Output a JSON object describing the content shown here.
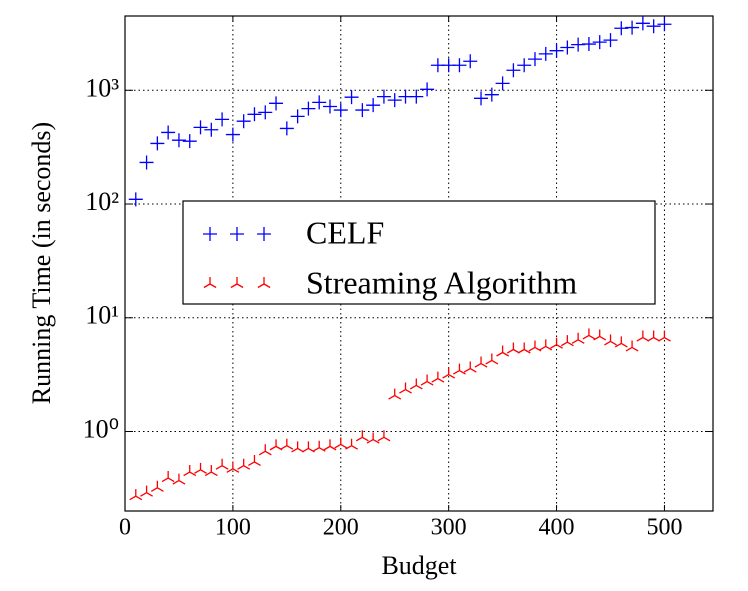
{
  "chart_data": {
    "type": "scatter",
    "xlabel": "Budget",
    "ylabel": "Running Time (in seconds)",
    "x": [
      10,
      20,
      30,
      40,
      50,
      60,
      70,
      80,
      90,
      100,
      110,
      120,
      130,
      140,
      150,
      160,
      170,
      180,
      190,
      200,
      210,
      220,
      230,
      240,
      250,
      260,
      270,
      280,
      290,
      300,
      310,
      320,
      330,
      340,
      350,
      360,
      370,
      380,
      390,
      400,
      410,
      420,
      430,
      440,
      450,
      460,
      470,
      480,
      490,
      500
    ],
    "series": [
      {
        "name": "CELF",
        "color": "#0000ff",
        "marker": "plus",
        "values": [
          110,
          232,
          341,
          426,
          364,
          357,
          472,
          450,
          555,
          408,
          535,
          615,
          640,
          768,
          462,
          590,
          690,
          783,
          720,
          670,
          870,
          670,
          740,
          880,
          820,
          880,
          880,
          1020,
          1660,
          1660,
          1660,
          1800,
          850,
          915,
          1150,
          1500,
          1660,
          1880,
          2090,
          2230,
          2380,
          2520,
          2550,
          2650,
          2760,
          3510,
          3560,
          3880,
          3660,
          3810
        ]
      },
      {
        "name": "Streaming Algorithm",
        "color": "#ff0000",
        "marker": "tri_up",
        "values": [
          0.27,
          0.29,
          0.32,
          0.39,
          0.37,
          0.44,
          0.46,
          0.44,
          0.5,
          0.47,
          0.5,
          0.54,
          0.67,
          0.74,
          0.75,
          0.71,
          0.71,
          0.72,
          0.74,
          0.77,
          0.75,
          0.89,
          0.85,
          0.89,
          2.07,
          2.34,
          2.54,
          2.75,
          2.92,
          3.17,
          3.43,
          3.58,
          3.96,
          4.21,
          4.95,
          5.26,
          5.26,
          5.48,
          5.6,
          5.8,
          6.1,
          6.4,
          7.0,
          6.85,
          6.2,
          5.95,
          5.48,
          6.7,
          6.7,
          6.7
        ]
      }
    ],
    "xlim": [
      0,
      545
    ],
    "xticks": [
      0,
      100,
      200,
      300,
      400,
      500
    ],
    "ylim": [
      0.2,
      4500
    ],
    "yscale": "log",
    "yticks": [
      {
        "value": 1,
        "label": "10⁰"
      },
      {
        "value": 10,
        "label": "10¹"
      },
      {
        "value": 100,
        "label": "10²"
      },
      {
        "value": 1000,
        "label": "10³"
      }
    ],
    "grid": true,
    "legend": "center"
  }
}
